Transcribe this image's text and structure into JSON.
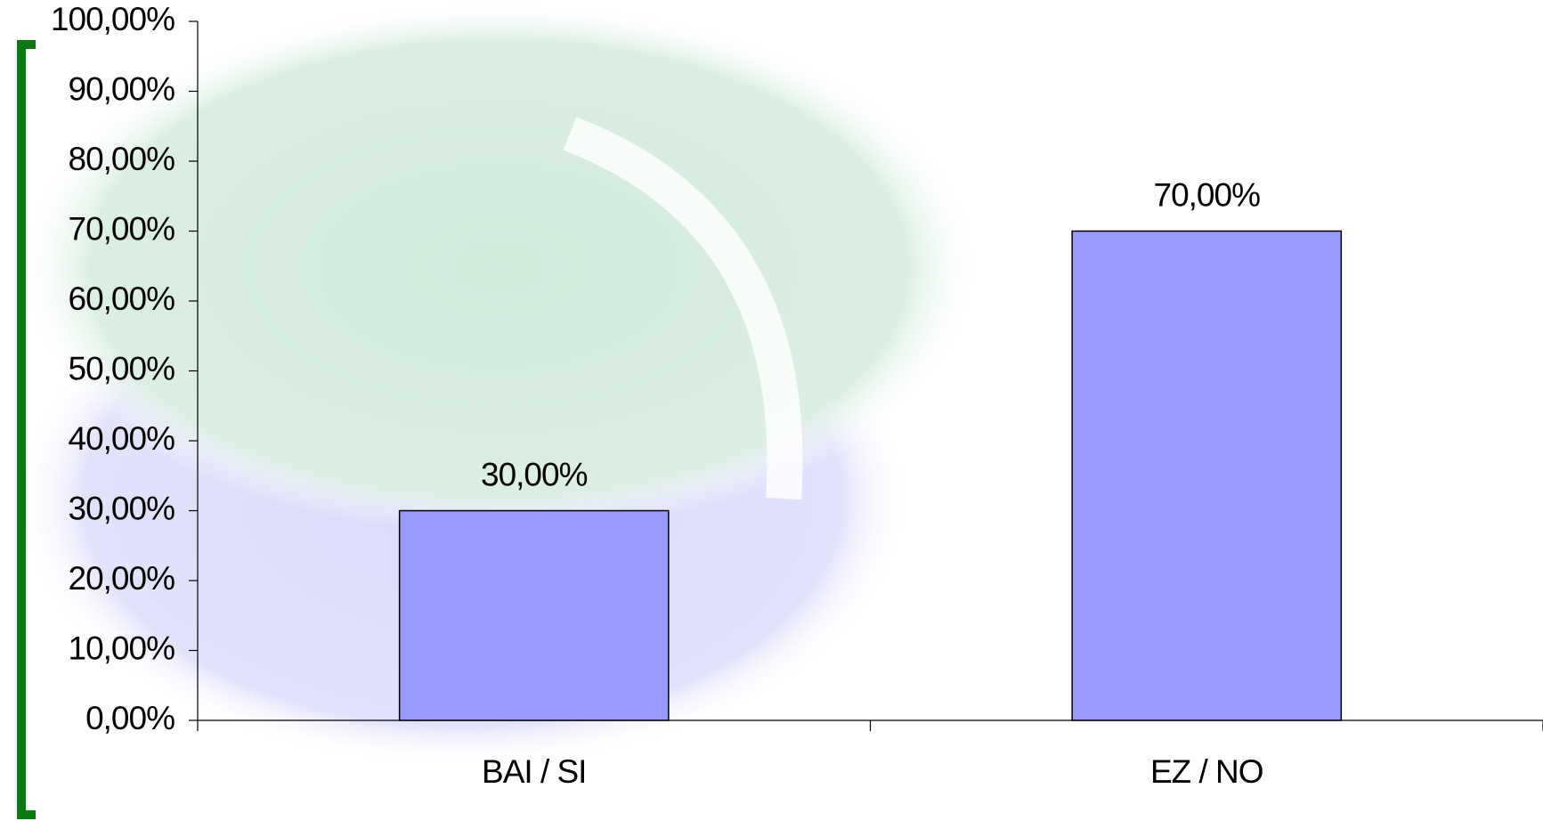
{
  "chart_data": {
    "type": "bar",
    "categories": [
      "BAI / SI",
      "EZ / NO"
    ],
    "values": [
      30,
      70
    ],
    "value_labels": [
      "30,00%",
      "70,00%"
    ],
    "color": "#9999ff",
    "ylim": [
      0,
      100
    ],
    "yticks": [
      {
        "value": 0,
        "label": "0,00%"
      },
      {
        "value": 10,
        "label": "10,00%"
      },
      {
        "value": 20,
        "label": "20,00%"
      },
      {
        "value": 30,
        "label": "30,00%"
      },
      {
        "value": 40,
        "label": "40,00%"
      },
      {
        "value": 50,
        "label": "50,00%"
      },
      {
        "value": 60,
        "label": "60,00%"
      },
      {
        "value": 70,
        "label": "70,00%"
      },
      {
        "value": 80,
        "label": "80,00%"
      },
      {
        "value": 90,
        "label": "90,00%"
      },
      {
        "value": 100,
        "label": "100,00%"
      }
    ],
    "grid": false
  }
}
